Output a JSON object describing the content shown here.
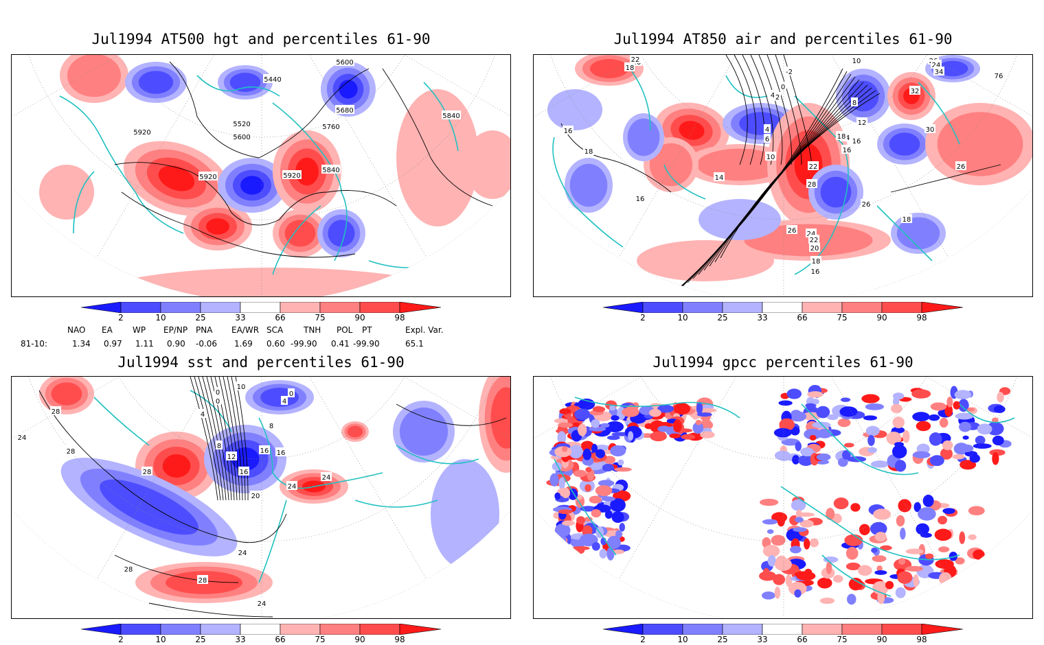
{
  "panels": [
    {
      "id": "hgt",
      "title": "Jul1994 AT500 hgt and percentiles 61-90",
      "contour_labels": [
        "5440",
        "5600",
        "5920",
        "5520",
        "5600",
        "5680",
        "5760",
        "5840",
        "5920",
        "5920",
        "5840"
      ]
    },
    {
      "id": "air",
      "title": "Jul1994 AT850 air and percentiles 61-90",
      "contour_labels": [
        "20",
        "22",
        "18",
        "-2",
        "10",
        "26",
        "24",
        "34",
        "76",
        "16",
        "4",
        "2",
        "0",
        "8",
        "32",
        "30",
        "18",
        "4",
        "6",
        "12",
        "14",
        "16",
        "10",
        "18",
        "16",
        "22",
        "28",
        "26",
        "26",
        "14",
        "16",
        "26",
        "24",
        "22",
        "20",
        "18",
        "18",
        "16"
      ]
    },
    {
      "id": "sst",
      "title": "Jul1994 sst and percentiles 61-90",
      "contour_labels": [
        "28",
        "24",
        "28",
        "10",
        "0",
        "0",
        "4",
        "8",
        "16",
        "8",
        "12",
        "16",
        "20",
        "28",
        "24",
        "24",
        "24",
        "28",
        "28",
        "24",
        "16",
        "0",
        "4"
      ]
    },
    {
      "id": "gpcc",
      "title": "Jul1994 gpcc percentiles 61-90",
      "contour_labels": []
    }
  ],
  "colorbar": {
    "labels": [
      "2",
      "10",
      "25",
      "33",
      "66",
      "75",
      "90",
      "98"
    ],
    "colors": {
      "dark_blue": "#1a1aff",
      "mid_blue": "#4d4dff",
      "light_blue": "#8080ff",
      "pale_blue": "#b3b3ff",
      "pale_red": "#ffb3b3",
      "light_red": "#ff8080",
      "mid_red": "#ff4d4d",
      "dark_red": "#ff1a1a"
    }
  },
  "indices": {
    "headers": [
      "NAO",
      "EA",
      "WP",
      "EP/NP",
      "PNA",
      "EA/WR",
      "SCA",
      "TNH",
      "POL",
      "PT",
      "Expl. Var."
    ],
    "row_label": "81-10:",
    "values": [
      "1.34",
      "0.97",
      "1.11",
      "0.90",
      "-0.06",
      "1.69",
      "0.60",
      "-99.90",
      "0.41",
      "-99.90",
      "65.1"
    ]
  },
  "colors": {
    "coastline": "#20c0c0",
    "contour": "#000000",
    "grid": "#888888"
  }
}
